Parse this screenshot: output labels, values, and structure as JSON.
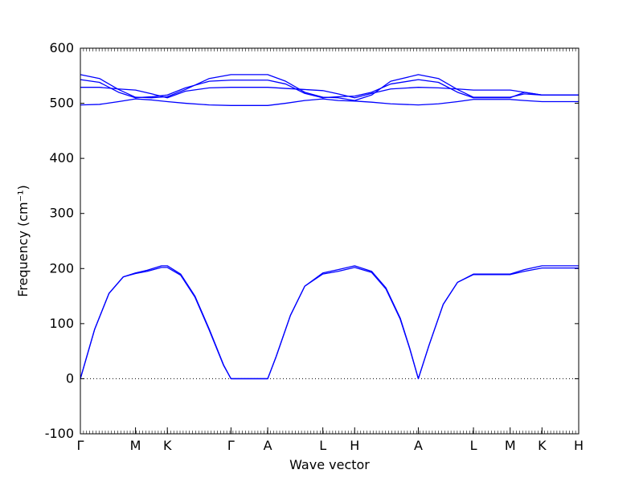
{
  "chart_data": {
    "type": "line",
    "title": "",
    "xlabel": "Wave vector",
    "ylabel": "Frequency (cm⁻¹)",
    "ylim": [
      -100,
      600
    ],
    "yticks": [
      -100,
      0,
      100,
      200,
      300,
      400,
      500,
      600
    ],
    "zero_line": {
      "y": 0,
      "style": "dotted"
    },
    "line_color": "#0000ff",
    "path_points": [
      {
        "label": "Γ",
        "x": 0.0
      },
      {
        "label": "M",
        "x": 0.5774
      },
      {
        "label": "K",
        "x": 0.9107
      },
      {
        "label": "Γ",
        "x": 1.5774
      },
      {
        "label": "A",
        "x": 1.9619
      },
      {
        "label": "L",
        "x": 2.5393
      },
      {
        "label": "H",
        "x": 2.8726
      },
      {
        "label": "A",
        "x": 3.5393
      },
      {
        "label": "L",
        "x": 4.1167
      },
      {
        "label": "M",
        "x": 4.5012
      },
      {
        "label": "K",
        "x": 4.8345
      },
      {
        "label": "H",
        "x": 5.219
      }
    ],
    "series": [
      {
        "points": [
          [
            0,
            0
          ],
          [
            0.15,
            90
          ],
          [
            0.3,
            155
          ],
          [
            0.45,
            185
          ],
          [
            0.5774,
            192
          ],
          [
            0.7,
            197
          ],
          [
            0.85,
            205
          ],
          [
            0.9107,
            205
          ],
          [
            1.05,
            190
          ],
          [
            1.2,
            150
          ],
          [
            1.35,
            90
          ],
          [
            1.5,
            25
          ],
          [
            1.5774,
            0
          ],
          [
            1.9619,
            0
          ],
          [
            2.05,
            40
          ],
          [
            2.2,
            115
          ],
          [
            2.35,
            168
          ],
          [
            2.5393,
            192
          ],
          [
            2.7,
            198
          ],
          [
            2.8726,
            205
          ],
          [
            3.05,
            195
          ],
          [
            3.2,
            165
          ],
          [
            3.35,
            110
          ],
          [
            3.45,
            55
          ],
          [
            3.5393,
            0
          ],
          [
            3.65,
            60
          ],
          [
            3.8,
            135
          ],
          [
            3.95,
            175
          ],
          [
            4.1167,
            190
          ],
          [
            4.5012,
            190
          ],
          [
            4.65,
            198
          ],
          [
            4.8345,
            205
          ],
          [
            5.219,
            205
          ]
        ]
      },
      {
        "points": [
          [
            0,
            0
          ],
          [
            0.15,
            90
          ],
          [
            0.3,
            155
          ],
          [
            0.45,
            185
          ],
          [
            0.5774,
            191
          ],
          [
            0.7,
            195
          ],
          [
            0.85,
            202
          ],
          [
            0.9107,
            202
          ],
          [
            1.05,
            188
          ],
          [
            1.2,
            148
          ],
          [
            1.35,
            88
          ],
          [
            1.5,
            24
          ],
          [
            1.5774,
            0
          ],
          [
            1.9619,
            0
          ],
          [
            2.05,
            40
          ],
          [
            2.2,
            115
          ],
          [
            2.35,
            168
          ],
          [
            2.5393,
            190
          ],
          [
            2.7,
            195
          ],
          [
            2.8726,
            202
          ],
          [
            3.05,
            193
          ],
          [
            3.2,
            163
          ],
          [
            3.35,
            108
          ],
          [
            3.45,
            54
          ],
          [
            3.5393,
            0
          ],
          [
            3.65,
            60
          ],
          [
            3.8,
            135
          ],
          [
            3.95,
            175
          ],
          [
            4.1167,
            189
          ],
          [
            4.5012,
            189
          ],
          [
            4.65,
            195
          ],
          [
            4.8345,
            201
          ],
          [
            5.219,
            201
          ]
        ]
      },
      {
        "points": [
          [
            0,
            552
          ],
          [
            0.2,
            545
          ],
          [
            0.4,
            525
          ],
          [
            0.5774,
            511
          ],
          [
            0.75,
            510
          ],
          [
            0.9107,
            512
          ],
          [
            1.1,
            525
          ],
          [
            1.35,
            545
          ],
          [
            1.5774,
            552
          ],
          [
            1.9619,
            552
          ],
          [
            2.15,
            540
          ],
          [
            2.35,
            520
          ],
          [
            2.5393,
            511
          ],
          [
            2.7,
            510
          ],
          [
            2.8726,
            505
          ],
          [
            3.05,
            515
          ],
          [
            3.25,
            540
          ],
          [
            3.5393,
            552
          ],
          [
            3.75,
            545
          ],
          [
            3.95,
            525
          ],
          [
            4.1167,
            511
          ],
          [
            4.5012,
            511
          ],
          [
            4.65,
            517
          ],
          [
            4.8345,
            515
          ],
          [
            5.219,
            515
          ]
        ]
      },
      {
        "points": [
          [
            0,
            543
          ],
          [
            0.2,
            538
          ],
          [
            0.4,
            520
          ],
          [
            0.5774,
            510
          ],
          [
            0.75,
            512
          ],
          [
            0.9107,
            515
          ],
          [
            1.1,
            528
          ],
          [
            1.35,
            540
          ],
          [
            1.5774,
            542
          ],
          [
            1.9619,
            542
          ],
          [
            2.15,
            535
          ],
          [
            2.35,
            518
          ],
          [
            2.5393,
            510
          ],
          [
            2.7,
            512
          ],
          [
            2.8726,
            513
          ],
          [
            3.05,
            520
          ],
          [
            3.25,
            535
          ],
          [
            3.5393,
            543
          ],
          [
            3.75,
            538
          ],
          [
            3.95,
            520
          ],
          [
            4.1167,
            510
          ],
          [
            4.5012,
            510
          ],
          [
            4.65,
            520
          ],
          [
            4.8345,
            515
          ],
          [
            5.219,
            515
          ]
        ]
      },
      {
        "points": [
          [
            0,
            529
          ],
          [
            0.2,
            529
          ],
          [
            0.4,
            526
          ],
          [
            0.5774,
            524
          ],
          [
            0.75,
            517
          ],
          [
            0.9107,
            510
          ],
          [
            1.1,
            522
          ],
          [
            1.35,
            528
          ],
          [
            1.5774,
            529
          ],
          [
            1.9619,
            529
          ],
          [
            2.15,
            527
          ],
          [
            2.35,
            525
          ],
          [
            2.5393,
            523
          ],
          [
            2.7,
            517
          ],
          [
            2.8726,
            510
          ],
          [
            3.05,
            518
          ],
          [
            3.25,
            526
          ],
          [
            3.5393,
            529
          ],
          [
            3.75,
            528
          ],
          [
            3.95,
            526
          ],
          [
            4.1167,
            524
          ],
          [
            4.5012,
            524
          ],
          [
            4.65,
            520
          ],
          [
            4.8345,
            515
          ],
          [
            5.219,
            515
          ]
        ]
      },
      {
        "points": [
          [
            0,
            497
          ],
          [
            0.2,
            498
          ],
          [
            0.4,
            503
          ],
          [
            0.5774,
            508
          ],
          [
            0.75,
            506
          ],
          [
            0.9107,
            503
          ],
          [
            1.1,
            500
          ],
          [
            1.35,
            497
          ],
          [
            1.5774,
            496
          ],
          [
            1.9619,
            496
          ],
          [
            2.15,
            500
          ],
          [
            2.35,
            505
          ],
          [
            2.5393,
            508
          ],
          [
            2.7,
            505
          ],
          [
            2.8726,
            504
          ],
          [
            3.05,
            502
          ],
          [
            3.25,
            499
          ],
          [
            3.5393,
            497
          ],
          [
            3.75,
            499
          ],
          [
            3.95,
            503
          ],
          [
            4.1167,
            507
          ],
          [
            4.5012,
            507
          ],
          [
            4.65,
            505
          ],
          [
            4.8345,
            503
          ],
          [
            5.219,
            503
          ]
        ]
      }
    ]
  }
}
